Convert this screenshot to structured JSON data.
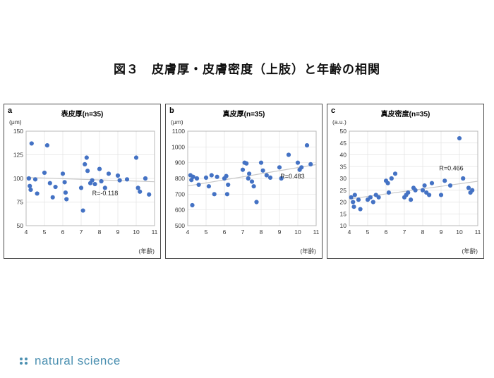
{
  "title": "図３　皮膚厚・皮膚密度（上肢）と年齢の相関",
  "footer": {
    "logo_text": "natural science",
    "logo_color": "#4a8fb0"
  },
  "point_color": "#4472c4",
  "trend_color": "#c8c8c8",
  "chart_data": [
    {
      "type": "scatter",
      "panel_label": "a",
      "title": "表皮厚(n=35)",
      "y_unit": "(μm)",
      "xlabel": "(年齢)",
      "xlim": [
        4,
        11
      ],
      "ylim": [
        50,
        150
      ],
      "xticks": [
        4,
        5,
        6,
        7,
        8,
        9,
        10,
        11
      ],
      "yticks": [
        50,
        75,
        100,
        125,
        150
      ],
      "r_label": "R=-0.118",
      "r_pos": [
        7.6,
        82
      ],
      "trend": {
        "x": [
          4,
          11
        ],
        "y": [
          101,
          96.5
        ]
      },
      "points": [
        [
          4.15,
          100
        ],
        [
          4.2,
          92
        ],
        [
          4.25,
          88
        ],
        [
          4.3,
          137
        ],
        [
          4.5,
          99
        ],
        [
          4.6,
          84
        ],
        [
          5.0,
          106
        ],
        [
          5.15,
          135
        ],
        [
          5.3,
          95
        ],
        [
          5.45,
          80
        ],
        [
          5.6,
          91
        ],
        [
          6.0,
          105
        ],
        [
          6.1,
          96
        ],
        [
          6.15,
          85
        ],
        [
          6.2,
          78
        ],
        [
          7.0,
          90
        ],
        [
          7.1,
          66
        ],
        [
          7.2,
          115
        ],
        [
          7.3,
          122
        ],
        [
          7.35,
          108
        ],
        [
          7.5,
          95
        ],
        [
          7.6,
          98
        ],
        [
          7.75,
          94
        ],
        [
          8.0,
          110
        ],
        [
          8.1,
          97
        ],
        [
          8.3,
          90
        ],
        [
          8.5,
          105
        ],
        [
          9.0,
          103
        ],
        [
          9.1,
          98
        ],
        [
          9.5,
          99
        ],
        [
          10.0,
          122
        ],
        [
          10.1,
          90
        ],
        [
          10.2,
          86
        ],
        [
          10.5,
          100
        ],
        [
          10.7,
          83
        ]
      ]
    },
    {
      "type": "scatter",
      "panel_label": "b",
      "title": "真皮厚(n=35)",
      "y_unit": "(μm)",
      "xlabel": "(年齢)",
      "xlim": [
        4,
        11
      ],
      "ylim": [
        500,
        1100
      ],
      "xticks": [
        4,
        5,
        6,
        7,
        8,
        9,
        10,
        11
      ],
      "yticks": [
        500,
        600,
        700,
        800,
        900,
        1000,
        1100
      ],
      "r_label": "R=0.483",
      "r_pos": [
        9.05,
        800
      ],
      "trend": {
        "x": [
          4,
          11
        ],
        "y": [
          752,
          888
        ]
      },
      "points": [
        [
          4.15,
          820
        ],
        [
          4.2,
          790
        ],
        [
          4.25,
          630
        ],
        [
          4.3,
          810
        ],
        [
          4.5,
          800
        ],
        [
          4.6,
          760
        ],
        [
          5.0,
          805
        ],
        [
          5.15,
          750
        ],
        [
          5.3,
          820
        ],
        [
          5.45,
          700
        ],
        [
          5.6,
          810
        ],
        [
          6.0,
          800
        ],
        [
          6.1,
          815
        ],
        [
          6.15,
          700
        ],
        [
          6.2,
          760
        ],
        [
          7.0,
          855
        ],
        [
          7.1,
          900
        ],
        [
          7.2,
          895
        ],
        [
          7.3,
          800
        ],
        [
          7.35,
          830
        ],
        [
          7.5,
          780
        ],
        [
          7.6,
          750
        ],
        [
          7.75,
          650
        ],
        [
          8.0,
          900
        ],
        [
          8.1,
          850
        ],
        [
          8.3,
          820
        ],
        [
          8.5,
          805
        ],
        [
          9.0,
          870
        ],
        [
          9.1,
          800
        ],
        [
          9.5,
          950
        ],
        [
          10.0,
          900
        ],
        [
          10.1,
          855
        ],
        [
          10.2,
          870
        ],
        [
          10.5,
          1010
        ],
        [
          10.7,
          890
        ]
      ]
    },
    {
      "type": "scatter",
      "panel_label": "c",
      "title": "真皮密度(n=35)",
      "y_unit": "(a.u.)",
      "xlabel": "(年齢)",
      "xlim": [
        4,
        11
      ],
      "ylim": [
        10,
        50
      ],
      "xticks": [
        4,
        5,
        6,
        7,
        8,
        9,
        10,
        11
      ],
      "yticks": [
        10,
        15,
        20,
        25,
        30,
        35,
        40,
        45,
        50
      ],
      "r_label": "R=0.466",
      "r_pos": [
        8.9,
        33.5
      ],
      "trend": {
        "x": [
          4,
          11
        ],
        "y": [
          21.3,
          28.8
        ]
      },
      "points": [
        [
          4.1,
          22
        ],
        [
          4.2,
          20
        ],
        [
          4.25,
          18
        ],
        [
          4.3,
          23
        ],
        [
          4.5,
          21
        ],
        [
          4.6,
          17
        ],
        [
          5.0,
          21
        ],
        [
          5.15,
          22
        ],
        [
          5.3,
          20
        ],
        [
          5.45,
          23
        ],
        [
          5.6,
          22
        ],
        [
          6.0,
          29
        ],
        [
          6.1,
          28
        ],
        [
          6.15,
          24
        ],
        [
          6.3,
          30
        ],
        [
          6.5,
          32
        ],
        [
          7.0,
          22
        ],
        [
          7.1,
          23
        ],
        [
          7.2,
          24
        ],
        [
          7.35,
          21
        ],
        [
          7.5,
          26
        ],
        [
          7.6,
          25
        ],
        [
          8.0,
          25
        ],
        [
          8.1,
          27
        ],
        [
          8.2,
          24
        ],
        [
          8.35,
          23
        ],
        [
          8.5,
          28
        ],
        [
          9.0,
          23
        ],
        [
          9.2,
          29
        ],
        [
          9.5,
          27
        ],
        [
          10.0,
          47
        ],
        [
          10.2,
          30
        ],
        [
          10.5,
          26
        ],
        [
          10.6,
          24
        ],
        [
          10.7,
          25
        ]
      ]
    }
  ]
}
